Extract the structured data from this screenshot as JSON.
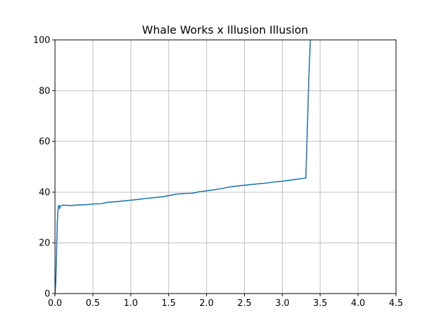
{
  "chart_data": {
    "type": "line",
    "title": "Whale Works x Illusion Illusion",
    "xlabel": "",
    "ylabel": "",
    "xlim": [
      0,
      4.5
    ],
    "ylim": [
      0,
      100
    ],
    "xticks": [
      0.0,
      0.5,
      1.0,
      1.5,
      2.0,
      2.5,
      3.0,
      3.5,
      4.0,
      4.5
    ],
    "xtick_labels": [
      "0.0",
      "0.5",
      "1.0",
      "1.5",
      "2.0",
      "2.5",
      "3.0",
      "3.5",
      "4.0",
      "4.5"
    ],
    "yticks": [
      0,
      20,
      40,
      60,
      80,
      100
    ],
    "ytick_labels": [
      "0",
      "20",
      "40",
      "60",
      "80",
      "100"
    ],
    "grid": true,
    "line_color": "#1f77b4",
    "series": [
      {
        "x": [
          0.0,
          0.01,
          0.02,
          0.03,
          0.04,
          0.05,
          0.06,
          0.07,
          0.08,
          0.1,
          0.15,
          0.2,
          0.3,
          0.4,
          0.5,
          0.6,
          0.7,
          0.8,
          0.9,
          1.0,
          1.1,
          1.2,
          1.3,
          1.4,
          1.5,
          1.6,
          1.7,
          1.8,
          1.9,
          2.0,
          2.1,
          2.2,
          2.3,
          2.4,
          2.5,
          2.6,
          2.7,
          2.8,
          2.9,
          3.0,
          3.1,
          3.2,
          3.3,
          3.31,
          3.32,
          3.35,
          3.37
        ],
        "y": [
          0.0,
          4.0,
          15.0,
          28.0,
          33.0,
          34.8,
          33.5,
          34.5,
          34.6,
          34.8,
          34.8,
          34.7,
          34.9,
          35.0,
          35.3,
          35.4,
          36.0,
          36.2,
          36.5,
          36.8,
          37.1,
          37.5,
          37.8,
          38.1,
          38.6,
          39.2,
          39.4,
          39.5,
          40.1,
          40.5,
          40.9,
          41.4,
          42.0,
          42.4,
          42.7,
          43.0,
          43.3,
          43.6,
          44.0,
          44.3,
          44.7,
          45.1,
          45.5,
          45.6,
          55.0,
          85.0,
          100.0
        ]
      }
    ]
  }
}
